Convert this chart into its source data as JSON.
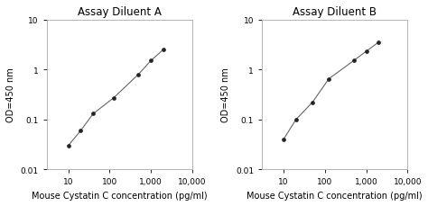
{
  "plot_A": {
    "title": "Assay Diluent A",
    "x": [
      10,
      20,
      40,
      125,
      500,
      1000,
      2000
    ],
    "y": [
      0.03,
      0.06,
      0.13,
      0.27,
      0.8,
      1.5,
      2.5
    ],
    "xlabel": "Mouse Cystatin C concentration (pg/ml)",
    "ylabel": "OD=450 nm",
    "xlim": [
      3,
      10000
    ],
    "ylim": [
      0.01,
      10
    ]
  },
  "plot_B": {
    "title": "Assay Diluent B",
    "x": [
      10,
      20,
      50,
      125,
      500,
      1000,
      2000
    ],
    "y": [
      0.04,
      0.1,
      0.22,
      0.65,
      1.5,
      2.3,
      3.5
    ],
    "xlabel": "Mouse Cystatin C concentration (pg/ml)",
    "ylabel": "OD=450 nm",
    "xlim": [
      3,
      10000
    ],
    "ylim": [
      0.01,
      10
    ]
  },
  "line_color": "#666666",
  "marker_color": "#222222",
  "bg_color": "#ffffff",
  "fig_bg_color": "#ffffff",
  "spine_color": "#aaaaaa",
  "title_fontsize": 8.5,
  "label_fontsize": 7,
  "tick_fontsize": 6.5,
  "x_ticks": [
    10,
    100,
    1000,
    10000
  ],
  "x_tick_labels": [
    "10",
    "100",
    "1,000",
    "10,000"
  ],
  "y_ticks": [
    0.01,
    0.1,
    1,
    10
  ],
  "y_tick_labels": [
    "0.01",
    "0.1",
    "1",
    "10"
  ]
}
